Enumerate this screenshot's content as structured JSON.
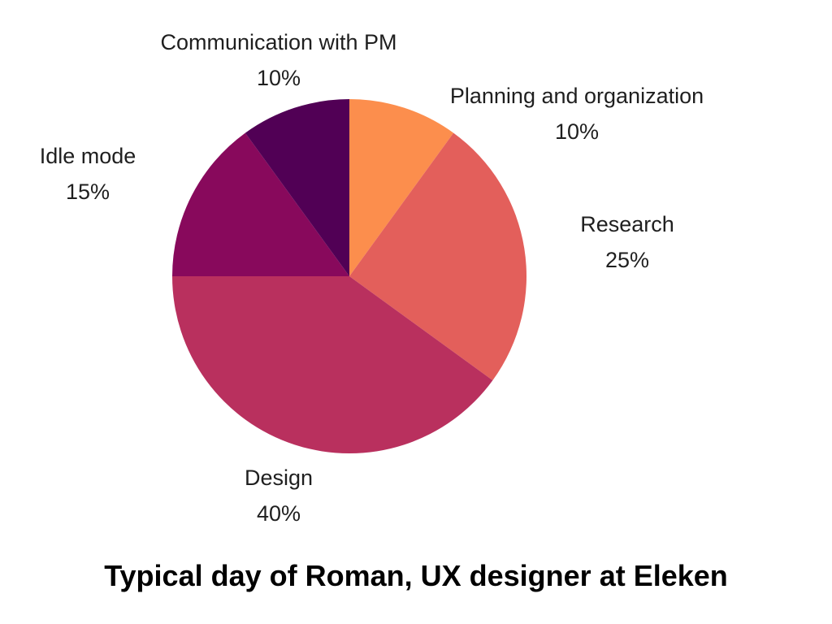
{
  "chart_data": {
    "type": "pie",
    "title": "Typical day of Roman, UX designer at Eleken",
    "slices": [
      {
        "label": "Planning and organization",
        "value": 10,
        "value_label": "10%",
        "color": "#fc8e4d"
      },
      {
        "label": "Research",
        "value": 25,
        "value_label": "25%",
        "color": "#e35f5b"
      },
      {
        "label": "Design",
        "value": 40,
        "value_label": "40%",
        "color": "#b9305e"
      },
      {
        "label": "Idle mode",
        "value": 15,
        "value_label": "15%",
        "color": "#88095c"
      },
      {
        "label": "Communication with PM",
        "value": 10,
        "value_label": "10%",
        "color": "#510055"
      }
    ],
    "start_angle": "12 o'clock",
    "direction": "clockwise",
    "legend": "none"
  }
}
